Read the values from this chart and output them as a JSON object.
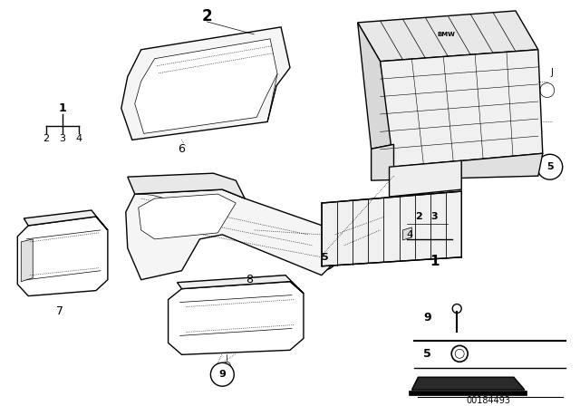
{
  "bg_color": "#ffffff",
  "part_number": "00184493",
  "line_color": "#000000",
  "lw_main": 1.0,
  "lw_thin": 0.5,
  "lw_dot": 0.4
}
